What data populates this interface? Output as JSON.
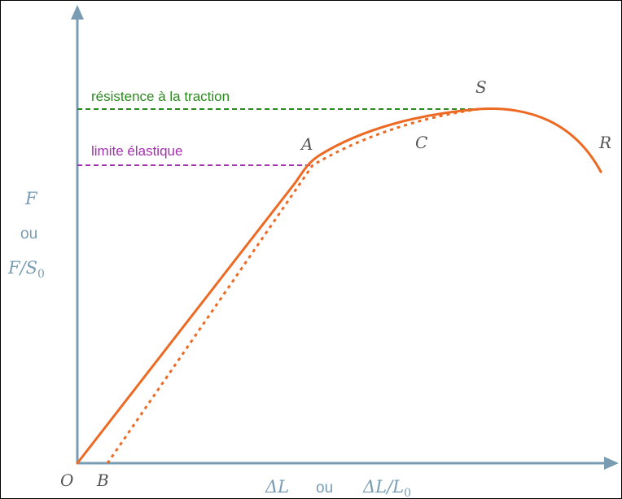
{
  "colors": {
    "axis": "#7a9cb3",
    "curve": "#ec6a23",
    "tensile_line": "#2b8a1e",
    "elastic_line": "#a52fb1",
    "point_label": "#555555"
  },
  "labels": {
    "tensile_strength": "résistence à la traction",
    "elastic_limit": "limite élastique",
    "y_axis": {
      "top": "F",
      "middle": "ou",
      "bottom_main": "F/S",
      "bottom_sub": "0"
    },
    "x_axis": {
      "left": "ΔL",
      "middle": "ou",
      "right_main": "ΔL/L",
      "right_sub": "0"
    }
  },
  "points": {
    "O": "O",
    "B": "B",
    "A": "A",
    "C": "C",
    "S": "S",
    "R": "R"
  }
}
